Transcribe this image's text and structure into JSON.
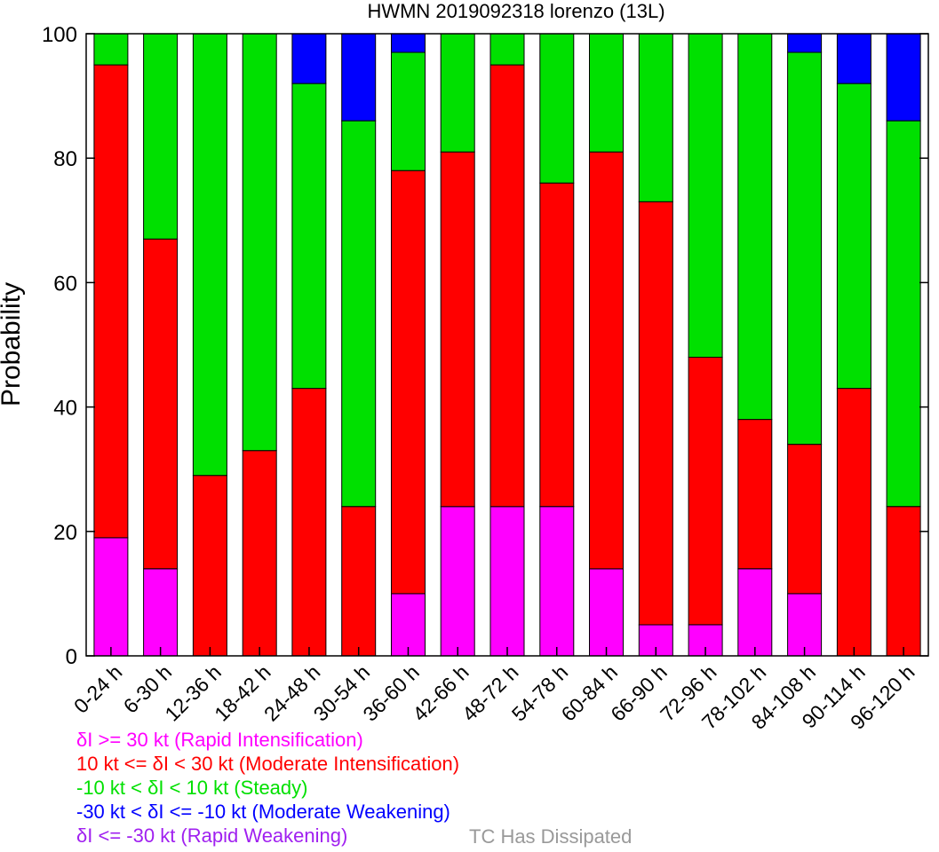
{
  "chart_data": {
    "type": "bar",
    "stacked": true,
    "title": "HWMN 2019092318 lorenzo (13L)",
    "xlabel": "",
    "ylabel": "Probability",
    "ylim": [
      0,
      100
    ],
    "yticks": [
      0,
      20,
      40,
      60,
      80,
      100
    ],
    "grid": false,
    "categories": [
      "0-24 h",
      "6-30 h",
      "12-36 h",
      "18-42 h",
      "24-48 h",
      "30-54 h",
      "36-60 h",
      "42-66 h",
      "48-72 h",
      "54-78 h",
      "60-84 h",
      "66-90 h",
      "72-96 h",
      "78-102 h",
      "84-108 h",
      "90-114 h",
      "96-120 h"
    ],
    "series": [
      {
        "key": "rapid_weakening",
        "color": "#a020f0",
        "values": [
          0,
          0,
          0,
          0,
          0,
          0,
          0,
          0,
          0,
          0,
          0,
          0,
          0,
          0,
          0,
          0,
          0
        ]
      },
      {
        "key": "rapid_intensification",
        "color": "#ff00ff",
        "values": [
          19,
          14,
          0,
          0,
          0,
          0,
          10,
          24,
          24,
          24,
          14,
          5,
          5,
          14,
          10,
          0,
          0
        ]
      },
      {
        "key": "moderate_intensification",
        "color": "#ff0000",
        "values": [
          76,
          53,
          29,
          33,
          43,
          24,
          68,
          57,
          71,
          52,
          67,
          68,
          43,
          24,
          24,
          43,
          24
        ]
      },
      {
        "key": "steady",
        "color": "#00e000",
        "values": [
          5,
          33,
          71,
          67,
          49,
          62,
          19,
          19,
          5,
          24,
          19,
          27,
          52,
          62,
          63,
          49,
          62
        ]
      },
      {
        "key": "moderate_weakening",
        "color": "#0000ff",
        "values": [
          0,
          0,
          0,
          0,
          8,
          14,
          3,
          0,
          0,
          0,
          0,
          0,
          0,
          0,
          3,
          8,
          14
        ]
      }
    ],
    "legend": {
      "placement": "bottom-left",
      "entries": [
        {
          "label": "δI >= 30 kt (Rapid Intensification)",
          "color": "#ff00ff"
        },
        {
          "label": "10 kt <= δI < 30 kt (Moderate Intensification)",
          "color": "#ff0000"
        },
        {
          "label": "-10 kt < δI < 10 kt (Steady)",
          "color": "#00e000"
        },
        {
          "label": "-30 kt < δI <= -10 kt (Moderate Weakening)",
          "color": "#0000ff"
        },
        {
          "label": "δI <= -30 kt (Rapid Weakening)",
          "color": "#a020f0"
        }
      ],
      "dissipated": {
        "label": "TC Has Dissipated",
        "color": "#999999"
      }
    }
  }
}
